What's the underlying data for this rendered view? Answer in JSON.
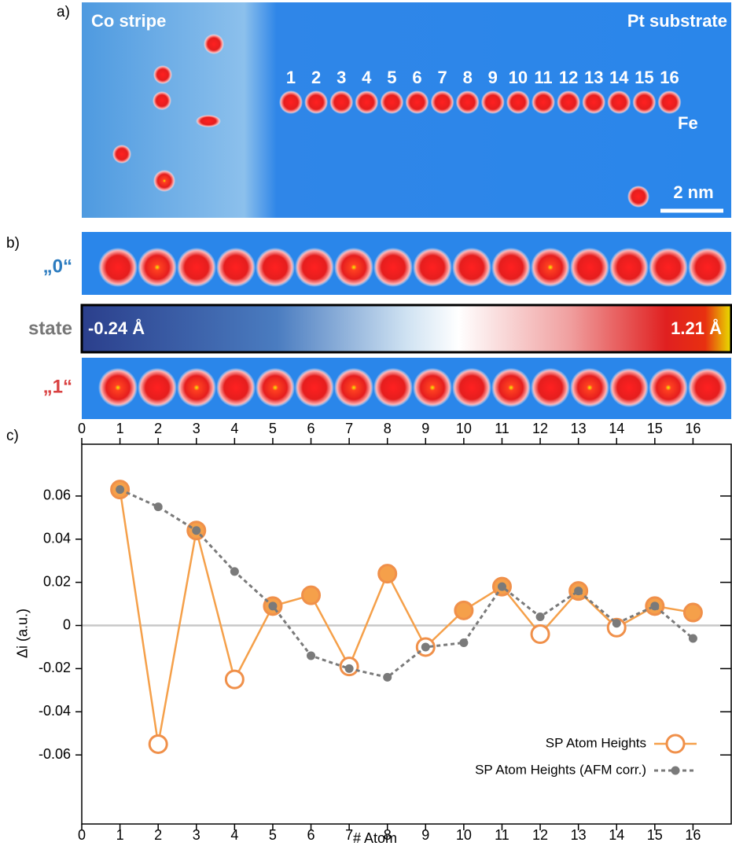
{
  "panel_labels": [
    "a)",
    "b)",
    "c)"
  ],
  "panel_a": {
    "left_label": "Co stripe",
    "right_label": "Pt substrate",
    "chain_label": "Fe",
    "scale_label": "2 nm",
    "atom_labels": [
      "1",
      "2",
      "3",
      "4",
      "5",
      "6",
      "7",
      "8",
      "9",
      "10",
      "11",
      "12",
      "13",
      "14",
      "15",
      "16"
    ]
  },
  "panel_b": {
    "state0_label": "„0“",
    "state1_label": "„1“",
    "state_label": "state",
    "scale_min": "-0.24 Å",
    "scale_max": "1.21 Å"
  },
  "chart_data": {
    "type": "line",
    "xlabel": "# Atom",
    "ylabel": "Δi (a.u.)",
    "x": [
      1,
      2,
      3,
      4,
      5,
      6,
      7,
      8,
      9,
      10,
      11,
      12,
      13,
      14,
      15,
      16
    ],
    "series": [
      {
        "name": "SP Atom Heights",
        "color": "#f5a04a",
        "values": [
          0.063,
          -0.055,
          0.044,
          -0.025,
          0.009,
          0.014,
          -0.019,
          0.024,
          -0.01,
          0.007,
          0.018,
          -0.004,
          0.016,
          -0.001,
          0.009,
          0.006
        ]
      },
      {
        "name": "SP Atom Heights (AFM corr.)",
        "color": "#7a7a7a",
        "values": [
          0.063,
          0.055,
          0.044,
          0.025,
          0.009,
          -0.014,
          -0.02,
          -0.024,
          -0.01,
          -0.008,
          0.018,
          0.004,
          0.016,
          0.001,
          0.009,
          -0.006
        ]
      }
    ],
    "xlim": [
      0,
      17
    ],
    "xticks": [
      0,
      1,
      2,
      3,
      4,
      5,
      6,
      7,
      8,
      9,
      10,
      11,
      12,
      13,
      14,
      15,
      16
    ],
    "ylim": [
      -0.092,
      0.084
    ],
    "yticks": [
      -0.06,
      -0.04,
      -0.02,
      0,
      0.02,
      0.04,
      0.06
    ],
    "legend": "lower right"
  }
}
